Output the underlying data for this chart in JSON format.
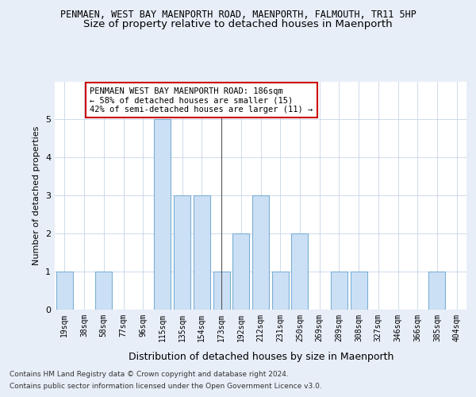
{
  "title": "PENMAEN, WEST BAY MAENPORTH ROAD, MAENPORTH, FALMOUTH, TR11 5HP",
  "subtitle": "Size of property relative to detached houses in Maenporth",
  "xlabel": "Distribution of detached houses by size in Maenporth",
  "ylabel": "Number of detached properties",
  "categories": [
    "19sqm",
    "38sqm",
    "58sqm",
    "77sqm",
    "96sqm",
    "115sqm",
    "135sqm",
    "154sqm",
    "173sqm",
    "192sqm",
    "212sqm",
    "231sqm",
    "250sqm",
    "269sqm",
    "289sqm",
    "308sqm",
    "327sqm",
    "346sqm",
    "366sqm",
    "385sqm",
    "404sqm"
  ],
  "values": [
    1,
    0,
    1,
    0,
    0,
    5,
    3,
    3,
    1,
    2,
    3,
    1,
    2,
    0,
    1,
    1,
    0,
    0,
    0,
    1,
    0
  ],
  "bar_color": "#cce0f5",
  "bar_edge_color": "#7bafd4",
  "vline_index": 8,
  "ylim": [
    0,
    6
  ],
  "yticks": [
    0,
    1,
    2,
    3,
    4,
    5,
    6
  ],
  "annotation_text": "PENMAEN WEST BAY MAENPORTH ROAD: 186sqm\n← 58% of detached houses are smaller (15)\n42% of semi-detached houses are larger (11) →",
  "annotation_box_color": "#ffffff",
  "annotation_border_color": "#cc0000",
  "footer_line1": "Contains HM Land Registry data © Crown copyright and database right 2024.",
  "footer_line2": "Contains public sector information licensed under the Open Government Licence v3.0.",
  "title_fontsize": 8.5,
  "subtitle_fontsize": 9.5,
  "xlabel_fontsize": 9,
  "ylabel_fontsize": 8,
  "tick_fontsize": 7,
  "annotation_fontsize": 7.5,
  "footer_fontsize": 6.5,
  "bg_color": "#e8eef8",
  "plot_bg_color": "#ffffff"
}
